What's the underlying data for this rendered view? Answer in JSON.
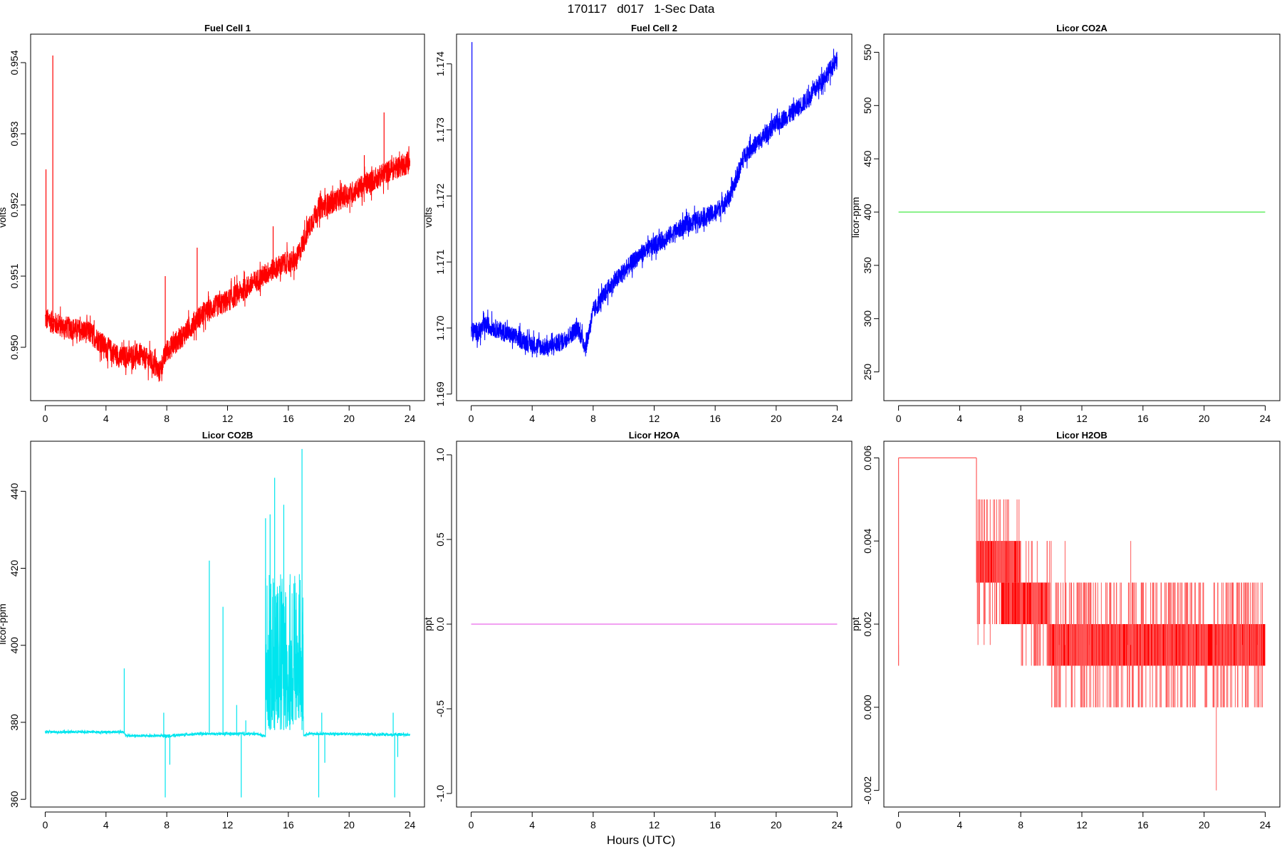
{
  "title": "170117   d017   1-Sec Data",
  "xlabel": "Hours (UTC)",
  "colors": {
    "red": "#ff0000",
    "blue": "#0000ff",
    "green": "#66ee66",
    "cyan": "#00e5ee",
    "magenta": "#ee82ee",
    "lightred": "#ff5a5a"
  },
  "chart_data": [
    {
      "type": "line",
      "title": "Fuel Cell 1",
      "ylabel": "volts",
      "xlim": [
        0,
        24
      ],
      "ylim": [
        0.94925,
        0.9544
      ],
      "xticks": [
        0,
        4,
        8,
        12,
        16,
        20,
        24
      ],
      "yticks": [
        0.95,
        0.951,
        0.952,
        0.953,
        0.954
      ],
      "ytick_labels": [
        "0.950",
        "0.951",
        "0.952",
        "0.953",
        "0.954"
      ],
      "color": "#ff0000",
      "noise": 0.00016,
      "x": [
        0,
        0.5,
        1,
        2,
        3,
        4,
        5,
        6,
        7,
        7.5,
        8,
        9,
        10,
        11,
        12,
        13,
        14,
        15,
        16,
        16.5,
        17,
        17.5,
        18,
        19,
        20,
        21,
        22,
        23,
        24
      ],
      "y": [
        0.9504,
        0.95035,
        0.9503,
        0.95025,
        0.9502,
        0.95,
        0.94985,
        0.9499,
        0.9498,
        0.94965,
        0.94995,
        0.95015,
        0.9504,
        0.95055,
        0.95065,
        0.9508,
        0.95095,
        0.9511,
        0.9512,
        0.9512,
        0.9515,
        0.95175,
        0.95195,
        0.95205,
        0.95215,
        0.95228,
        0.9524,
        0.95252,
        0.9526
      ],
      "spikes": [
        [
          0.05,
          0.9525
        ],
        [
          0.5,
          0.9541
        ],
        [
          7.9,
          0.951
        ],
        [
          10,
          0.9514
        ],
        [
          15,
          0.9517
        ],
        [
          22.3,
          0.9533
        ],
        [
          21,
          0.9527
        ]
      ]
    },
    {
      "type": "line",
      "title": "Fuel Cell 2",
      "ylabel": "volts",
      "xlim": [
        0,
        24
      ],
      "ylim": [
        1.1689,
        1.17445
      ],
      "xticks": [
        0,
        4,
        8,
        12,
        16,
        20,
        24
      ],
      "yticks": [
        1.169,
        1.17,
        1.171,
        1.172,
        1.173,
        1.174
      ],
      "ytick_labels": [
        "1.169",
        "1.170",
        "1.171",
        "1.172",
        "1.173",
        "1.174"
      ],
      "color": "#0000ff",
      "noise": 0.00014,
      "x": [
        0,
        0.5,
        1,
        2,
        3,
        4,
        5,
        6,
        7,
        7.5,
        8,
        9,
        10,
        11,
        12,
        13,
        14,
        15,
        16,
        17,
        17.5,
        18,
        19,
        20,
        21,
        22,
        23,
        24
      ],
      "y": [
        1.16995,
        1.16995,
        1.17005,
        1.16995,
        1.16985,
        1.16975,
        1.1697,
        1.1698,
        1.17,
        1.1697,
        1.17025,
        1.1706,
        1.17085,
        1.1711,
        1.17125,
        1.1714,
        1.17155,
        1.17165,
        1.17175,
        1.172,
        1.17235,
        1.17265,
        1.17285,
        1.1731,
        1.17325,
        1.17345,
        1.17375,
        1.17405
      ],
      "spikes": [
        [
          0.05,
          1.17433
        ],
        [
          0.1,
          1.1698
        ]
      ]
    },
    {
      "type": "line",
      "title": "Licor CO2A",
      "ylabel": "licor-ppm",
      "xlim": [
        0,
        24
      ],
      "ylim": [
        223,
        567
      ],
      "xticks": [
        0,
        4,
        8,
        12,
        16,
        20,
        24
      ],
      "yticks": [
        250,
        300,
        350,
        400,
        450,
        500,
        550
      ],
      "ytick_labels": [
        "250",
        "300",
        "350",
        "400",
        "450",
        "500",
        "550"
      ],
      "color": "#66ee66",
      "noise": 0,
      "x": [
        0,
        24
      ],
      "y": [
        400,
        400
      ]
    },
    {
      "type": "line",
      "title": "Licor CO2B",
      "ylabel": "licor-ppm",
      "xlim": [
        0,
        24
      ],
      "ylim": [
        358,
        453
      ],
      "xticks": [
        0,
        4,
        8,
        12,
        16,
        20,
        24
      ],
      "yticks": [
        360,
        380,
        400,
        420,
        440
      ],
      "ytick_labels": [
        "360",
        "380",
        "400",
        "420",
        "440"
      ],
      "color": "#00e5ee",
      "noise": 0.35,
      "x": [
        0,
        5.2,
        5.3,
        8,
        10,
        12,
        14,
        14.4,
        17,
        17.3,
        18,
        20,
        22,
        24
      ],
      "y": [
        377.5,
        377.5,
        376.5,
        376.5,
        377,
        377,
        377,
        376.5,
        376.5,
        377,
        377,
        377,
        376.8,
        376.8
      ],
      "spikes": [
        [
          5.2,
          394
        ],
        [
          7.8,
          382.5
        ],
        [
          7.9,
          360.5
        ],
        [
          8.2,
          369
        ],
        [
          10.8,
          422
        ],
        [
          11.7,
          410
        ],
        [
          12.6,
          384.5
        ],
        [
          12.9,
          360.5
        ],
        [
          13.2,
          380.5
        ],
        [
          18.0,
          360.5
        ],
        [
          18.2,
          382.5
        ],
        [
          18.4,
          369.5
        ],
        [
          22.9,
          382.5
        ],
        [
          23.0,
          360.5
        ],
        [
          23.2,
          371
        ]
      ],
      "burst": {
        "x_range": [
          14.5,
          17.0
        ],
        "low": 378,
        "high": 437,
        "peaks": [
          [
            14.5,
            433
          ],
          [
            14.8,
            434
          ],
          [
            15.1,
            443.5
          ],
          [
            15.7,
            436.5
          ],
          [
            16.1,
            403.5
          ],
          [
            16.9,
            451
          ]
        ]
      }
    },
    {
      "type": "line",
      "title": "Licor H2OA",
      "ylabel": "ppt",
      "xlim": [
        0,
        24
      ],
      "ylim": [
        -1.08,
        1.08
      ],
      "xticks": [
        0,
        4,
        8,
        12,
        16,
        20,
        24
      ],
      "yticks": [
        -1.0,
        -0.5,
        0.0,
        0.5,
        1.0
      ],
      "ytick_labels": [
        "-1.0",
        "-0.5",
        "0.0",
        "0.5",
        "1.0"
      ],
      "color": "#ee82ee",
      "noise": 0,
      "x": [
        0,
        24
      ],
      "y": [
        0,
        0
      ]
    },
    {
      "type": "line",
      "title": "Licor H2OB",
      "ylabel": "ppt",
      "xlim": [
        0,
        24
      ],
      "ylim": [
        -0.0024,
        0.0064
      ],
      "xticks": [
        0,
        4,
        8,
        12,
        16,
        20,
        24
      ],
      "yticks": [
        -0.002,
        0.0,
        0.002,
        0.004,
        0.006
      ],
      "ytick_labels": [
        "-0.002",
        "0.000",
        "0.002",
        "0.004",
        "0.006"
      ],
      "color": "#ff0000",
      "steps": [
        {
          "x0": 0,
          "x1": 5.1,
          "lo": 0.006,
          "hi": 0.006
        },
        {
          "x0": 5.1,
          "x1": 6.2,
          "lo": 0.003,
          "hi": 0.004
        },
        {
          "x0": 6.2,
          "x1": 8.0,
          "lo": 0.003,
          "hi": 0.004
        },
        {
          "x0": 6.7,
          "x1": 8.3,
          "lo": 0.002,
          "hi": 0.003
        },
        {
          "x0": 8.3,
          "x1": 9.8,
          "lo": 0.002,
          "hi": 0.003
        },
        {
          "x0": 9.8,
          "x1": 24,
          "lo": 0.001,
          "hi": 0.002
        }
      ],
      "spikes": [
        [
          0.0,
          0.001
        ],
        [
          5.2,
          0.005
        ],
        [
          5.6,
          0.005
        ],
        [
          6.0,
          0.005
        ],
        [
          20.8,
          -0.002
        ],
        [
          10.9,
          0.004
        ],
        [
          15.2,
          0.004
        ],
        [
          10.5,
          0.0
        ],
        [
          12.5,
          0.0
        ],
        [
          15.0,
          0.0
        ],
        [
          18.5,
          0.0
        ],
        [
          22.5,
          0.0
        ],
        [
          23.5,
          0.0
        ]
      ]
    }
  ]
}
